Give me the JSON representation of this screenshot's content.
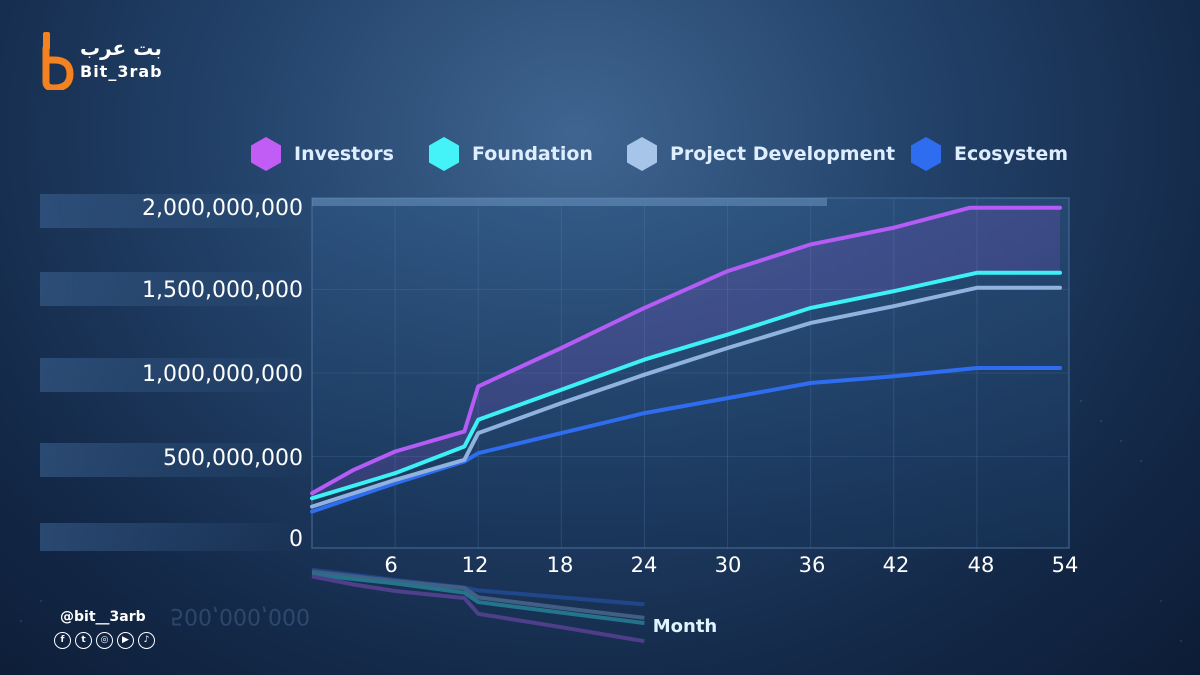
{
  "brand": {
    "name_ar": "بت عرب",
    "name_en": "Bit_3rab",
    "handle": "@bit__3arb",
    "social_icons": [
      "facebook-icon",
      "twitter-icon",
      "instagram-icon",
      "youtube-icon",
      "tiktok-icon"
    ],
    "colors": {
      "logo": "#f58220"
    }
  },
  "chart_data": {
    "type": "line",
    "title": "",
    "xlabel": "Month",
    "ylabel": "",
    "xlim": [
      0,
      54
    ],
    "ylim": [
      0,
      2000000000
    ],
    "x_ticks": [
      "6",
      "12",
      "18",
      "24",
      "30",
      "36",
      "42",
      "48",
      "54"
    ],
    "y_ticks": [
      "0",
      "500,000,000",
      "1,000,000,000",
      "1,500,000,000",
      "2,000,000,000"
    ],
    "legend_position": "top",
    "grid": true,
    "series": [
      {
        "name": "Investors",
        "color": "#b45cf5",
        "points": [
          [
            0,
            280000000
          ],
          [
            3,
            420000000
          ],
          [
            6,
            530000000
          ],
          [
            11,
            650000000
          ],
          [
            12,
            920000000
          ],
          [
            18,
            1150000000
          ],
          [
            24,
            1390000000
          ],
          [
            30,
            1610000000
          ],
          [
            36,
            1770000000
          ],
          [
            42,
            1870000000
          ],
          [
            47.5,
            1990000000
          ],
          [
            54,
            1990000000
          ]
        ]
      },
      {
        "name": "Foundation",
        "color": "#3cf0f5",
        "points": [
          [
            0,
            250000000
          ],
          [
            6,
            400000000
          ],
          [
            11,
            560000000
          ],
          [
            12,
            720000000
          ],
          [
            18,
            900000000
          ],
          [
            24,
            1080000000
          ],
          [
            30,
            1230000000
          ],
          [
            36,
            1390000000
          ],
          [
            42,
            1490000000
          ],
          [
            48,
            1600000000
          ],
          [
            54,
            1600000000
          ]
        ]
      },
      {
        "name": "Project Development",
        "color": "#8fb3de",
        "points": [
          [
            0,
            200000000
          ],
          [
            6,
            360000000
          ],
          [
            11,
            480000000
          ],
          [
            12,
            640000000
          ],
          [
            18,
            820000000
          ],
          [
            24,
            990000000
          ],
          [
            30,
            1150000000
          ],
          [
            36,
            1300000000
          ],
          [
            42,
            1400000000
          ],
          [
            48,
            1510000000
          ],
          [
            54,
            1510000000
          ]
        ]
      },
      {
        "name": "Ecosystem",
        "color": "#2f6df0",
        "points": [
          [
            0,
            170000000
          ],
          [
            6,
            340000000
          ],
          [
            11,
            470000000
          ],
          [
            12,
            520000000
          ],
          [
            18,
            640000000
          ],
          [
            24,
            760000000
          ],
          [
            30,
            850000000
          ],
          [
            36,
            940000000
          ],
          [
            42,
            980000000
          ],
          [
            48,
            1030000000
          ],
          [
            54,
            1030000000
          ]
        ]
      }
    ]
  }
}
